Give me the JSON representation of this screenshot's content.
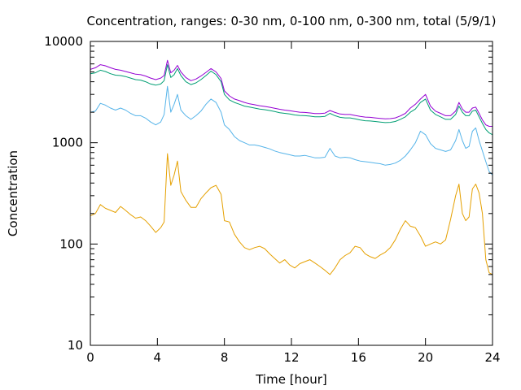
{
  "chart_data": {
    "type": "line",
    "title": "Concentration, ranges: 0-30 nm, 0-100 nm, 0-300 nm, total (5/9/1)",
    "xlabel": "Time [hour]",
    "ylabel": "Concentration",
    "xlim": [
      0,
      24
    ],
    "ylim": [
      10,
      10000
    ],
    "yscale": "log",
    "grid": false,
    "legend": "none",
    "x_ticks": [
      0,
      4,
      8,
      12,
      16,
      20,
      24
    ],
    "x_tick_labels": [
      "0",
      "4",
      "8",
      "12",
      "16",
      "20",
      "24"
    ],
    "y_ticks": [
      10,
      100,
      1000,
      10000
    ],
    "y_tick_labels": [
      "10",
      "100",
      "1000",
      "10000"
    ],
    "series": [
      {
        "color": "#e5a000",
        "x": [
          0,
          0.3,
          0.6,
          0.9,
          1.2,
          1.5,
          1.8,
          2.1,
          2.4,
          2.7,
          3.0,
          3.3,
          3.6,
          3.9,
          4.2,
          4.4,
          4.6,
          4.8,
          5.0,
          5.2,
          5.4,
          5.7,
          6.0,
          6.3,
          6.6,
          6.9,
          7.2,
          7.5,
          7.8,
          8.0,
          8.3,
          8.6,
          8.9,
          9.2,
          9.5,
          9.8,
          10.1,
          10.4,
          10.7,
          11.0,
          11.3,
          11.6,
          11.9,
          12.2,
          12.5,
          12.8,
          13.1,
          13.4,
          13.7,
          14.0,
          14.3,
          14.6,
          14.9,
          15.2,
          15.5,
          15.8,
          16.1,
          16.4,
          16.7,
          17.0,
          17.3,
          17.6,
          17.9,
          18.2,
          18.5,
          18.8,
          19.1,
          19.4,
          19.7,
          20.0,
          20.3,
          20.6,
          20.9,
          21.2,
          21.5,
          21.8,
          22.0,
          22.2,
          22.4,
          22.6,
          22.8,
          23.0,
          23.2,
          23.4,
          23.6,
          23.8,
          24.0
        ],
        "values": [
          190,
          200,
          245,
          225,
          215,
          205,
          235,
          215,
          195,
          180,
          185,
          170,
          150,
          130,
          145,
          165,
          780,
          380,
          480,
          660,
          330,
          270,
          230,
          230,
          280,
          320,
          360,
          380,
          310,
          170,
          165,
          125,
          105,
          92,
          88,
          92,
          95,
          90,
          80,
          72,
          65,
          70,
          62,
          58,
          64,
          67,
          70,
          65,
          60,
          55,
          50,
          58,
          70,
          77,
          82,
          95,
          92,
          80,
          75,
          72,
          78,
          83,
          92,
          110,
          140,
          170,
          150,
          145,
          120,
          95,
          100,
          105,
          100,
          110,
          175,
          300,
          390,
          200,
          170,
          185,
          350,
          390,
          320,
          200,
          70,
          52,
          50
        ]
      },
      {
        "color": "#56b4e9",
        "x": [
          0,
          0.3,
          0.6,
          0.9,
          1.2,
          1.5,
          1.8,
          2.1,
          2.4,
          2.7,
          3.0,
          3.3,
          3.6,
          3.9,
          4.2,
          4.4,
          4.6,
          4.8,
          5.0,
          5.2,
          5.4,
          5.7,
          6.0,
          6.3,
          6.6,
          6.9,
          7.2,
          7.5,
          7.8,
          8.0,
          8.3,
          8.6,
          8.9,
          9.2,
          9.5,
          9.8,
          10.1,
          10.4,
          10.7,
          11.0,
          11.3,
          11.6,
          11.9,
          12.2,
          12.5,
          12.8,
          13.1,
          13.4,
          13.7,
          14.0,
          14.3,
          14.6,
          14.9,
          15.2,
          15.5,
          15.8,
          16.1,
          16.4,
          16.7,
          17.0,
          17.3,
          17.6,
          17.9,
          18.2,
          18.5,
          18.8,
          19.1,
          19.4,
          19.7,
          20.0,
          20.3,
          20.6,
          20.9,
          21.2,
          21.5,
          21.8,
          22.0,
          22.2,
          22.4,
          22.6,
          22.8,
          23.0,
          23.2,
          23.4,
          23.6,
          23.8,
          24.0
        ],
        "values": [
          2000,
          2050,
          2450,
          2350,
          2200,
          2100,
          2200,
          2100,
          1950,
          1850,
          1850,
          1750,
          1600,
          1500,
          1600,
          1900,
          3600,
          2000,
          2400,
          3000,
          2100,
          1850,
          1700,
          1850,
          2050,
          2400,
          2700,
          2500,
          2000,
          1500,
          1350,
          1150,
          1050,
          1000,
          950,
          950,
          930,
          900,
          870,
          830,
          800,
          780,
          760,
          740,
          740,
          750,
          730,
          710,
          710,
          720,
          880,
          740,
          710,
          720,
          710,
          680,
          660,
          650,
          640,
          630,
          620,
          600,
          610,
          630,
          670,
          740,
          850,
          1000,
          1300,
          1200,
          980,
          880,
          850,
          820,
          850,
          1050,
          1350,
          1050,
          880,
          920,
          1300,
          1400,
          1050,
          830,
          650,
          520,
          480
        ]
      },
      {
        "color": "#009e73",
        "x": [
          0,
          0.3,
          0.6,
          0.9,
          1.2,
          1.5,
          1.8,
          2.1,
          2.4,
          2.7,
          3.0,
          3.3,
          3.6,
          3.9,
          4.2,
          4.4,
          4.6,
          4.8,
          5.0,
          5.2,
          5.4,
          5.7,
          6.0,
          6.3,
          6.6,
          6.9,
          7.2,
          7.5,
          7.8,
          8.0,
          8.3,
          8.6,
          8.9,
          9.2,
          9.5,
          9.8,
          10.1,
          10.4,
          10.7,
          11.0,
          11.3,
          11.6,
          11.9,
          12.2,
          12.5,
          12.8,
          13.1,
          13.4,
          13.7,
          14.0,
          14.3,
          14.6,
          14.9,
          15.2,
          15.5,
          15.8,
          16.1,
          16.4,
          16.7,
          17.0,
          17.3,
          17.6,
          17.9,
          18.2,
          18.5,
          18.8,
          19.1,
          19.4,
          19.7,
          20.0,
          20.3,
          20.6,
          20.9,
          21.2,
          21.5,
          21.8,
          22.0,
          22.2,
          22.4,
          22.6,
          22.8,
          23.0,
          23.2,
          23.4,
          23.6,
          23.8,
          24.0
        ],
        "values": [
          4800,
          4900,
          5200,
          5050,
          4800,
          4650,
          4600,
          4500,
          4350,
          4200,
          4150,
          4000,
          3800,
          3700,
          3800,
          4100,
          5900,
          4400,
          4700,
          5400,
          4600,
          4000,
          3750,
          3900,
          4200,
          4600,
          5100,
          4700,
          4000,
          3000,
          2650,
          2500,
          2400,
          2300,
          2250,
          2200,
          2150,
          2120,
          2080,
          2030,
          1980,
          1950,
          1920,
          1880,
          1860,
          1850,
          1830,
          1800,
          1800,
          1820,
          1950,
          1850,
          1780,
          1760,
          1760,
          1720,
          1680,
          1650,
          1640,
          1620,
          1600,
          1580,
          1590,
          1620,
          1700,
          1800,
          2000,
          2150,
          2500,
          2700,
          2100,
          1900,
          1800,
          1700,
          1700,
          1900,
          2300,
          2000,
          1850,
          1850,
          2050,
          2100,
          1800,
          1550,
          1350,
          1250,
          1200
        ]
      },
      {
        "color": "#9400d3",
        "x": [
          0,
          0.3,
          0.6,
          0.9,
          1.2,
          1.5,
          1.8,
          2.1,
          2.4,
          2.7,
          3.0,
          3.3,
          3.6,
          3.9,
          4.2,
          4.4,
          4.6,
          4.8,
          5.0,
          5.2,
          5.4,
          5.7,
          6.0,
          6.3,
          6.6,
          6.9,
          7.2,
          7.5,
          7.8,
          8.0,
          8.3,
          8.6,
          8.9,
          9.2,
          9.5,
          9.8,
          10.1,
          10.4,
          10.7,
          11.0,
          11.3,
          11.6,
          11.9,
          12.2,
          12.5,
          12.8,
          13.1,
          13.4,
          13.7,
          14.0,
          14.3,
          14.6,
          14.9,
          15.2,
          15.5,
          15.8,
          16.1,
          16.4,
          16.7,
          17.0,
          17.3,
          17.6,
          17.9,
          18.2,
          18.5,
          18.8,
          19.1,
          19.4,
          19.7,
          20.0,
          20.3,
          20.6,
          20.9,
          21.2,
          21.5,
          21.8,
          22.0,
          22.2,
          22.4,
          22.6,
          22.8,
          23.0,
          23.2,
          23.4,
          23.6,
          23.8,
          24.0
        ],
        "values": [
          5300,
          5500,
          5900,
          5750,
          5500,
          5300,
          5200,
          5050,
          4900,
          4750,
          4700,
          4550,
          4350,
          4200,
          4350,
          4600,
          6500,
          4900,
          5200,
          5800,
          5000,
          4400,
          4100,
          4250,
          4550,
          4950,
          5400,
          5000,
          4300,
          3250,
          2900,
          2700,
          2600,
          2500,
          2420,
          2370,
          2320,
          2280,
          2240,
          2190,
          2140,
          2100,
          2070,
          2030,
          2000,
          1990,
          1970,
          1940,
          1940,
          1960,
          2080,
          1990,
          1920,
          1900,
          1900,
          1860,
          1820,
          1790,
          1780,
          1760,
          1740,
          1720,
          1730,
          1760,
          1840,
          1950,
          2200,
          2400,
          2700,
          3000,
          2300,
          2050,
          1950,
          1850,
          1850,
          2050,
          2500,
          2150,
          2000,
          2000,
          2200,
          2250,
          1950,
          1680,
          1500,
          1450,
          1450
        ]
      }
    ]
  }
}
